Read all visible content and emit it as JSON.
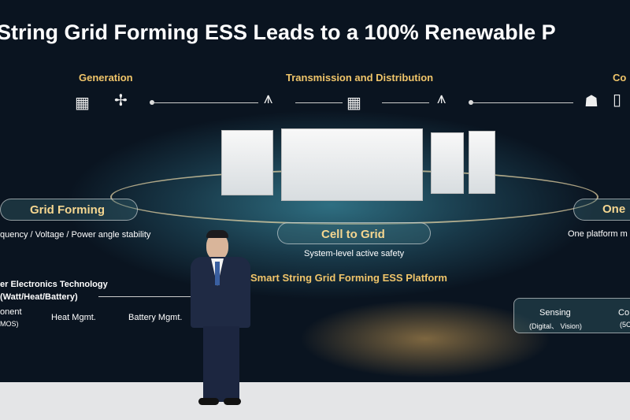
{
  "slide": {
    "title": "String Grid Forming ESS Leads to a 100% Renewable P",
    "generation": "Generation",
    "transmission": "Transmission and Distribution",
    "consumption_partial": "Co",
    "grid_forming": "Grid Forming",
    "grid_forming_desc": "quency / Voltage / Power angle stability",
    "cell_to_grid": "Cell to Grid",
    "cell_to_grid_desc": "System-level active safety",
    "one_partial": "One",
    "one_desc": "One platform m",
    "platform": "Smart String Grid Forming ESS Platform",
    "tech_line1": "er Electronics Technology",
    "tech_line2": "(Watt/Heat/Battery)",
    "component": "onent",
    "component_sub": "MOS)",
    "heat": "Heat Mgmt.",
    "battery": "Battery Mgmt.",
    "sensing": "Sensing",
    "sensing_sub": "(Digital、 Vision)",
    "co_right": "Co",
    "co_right_sub": "(5C"
  },
  "colors": {
    "accent_gold": "#f0c56a",
    "screen_bg": "#0a1420"
  }
}
